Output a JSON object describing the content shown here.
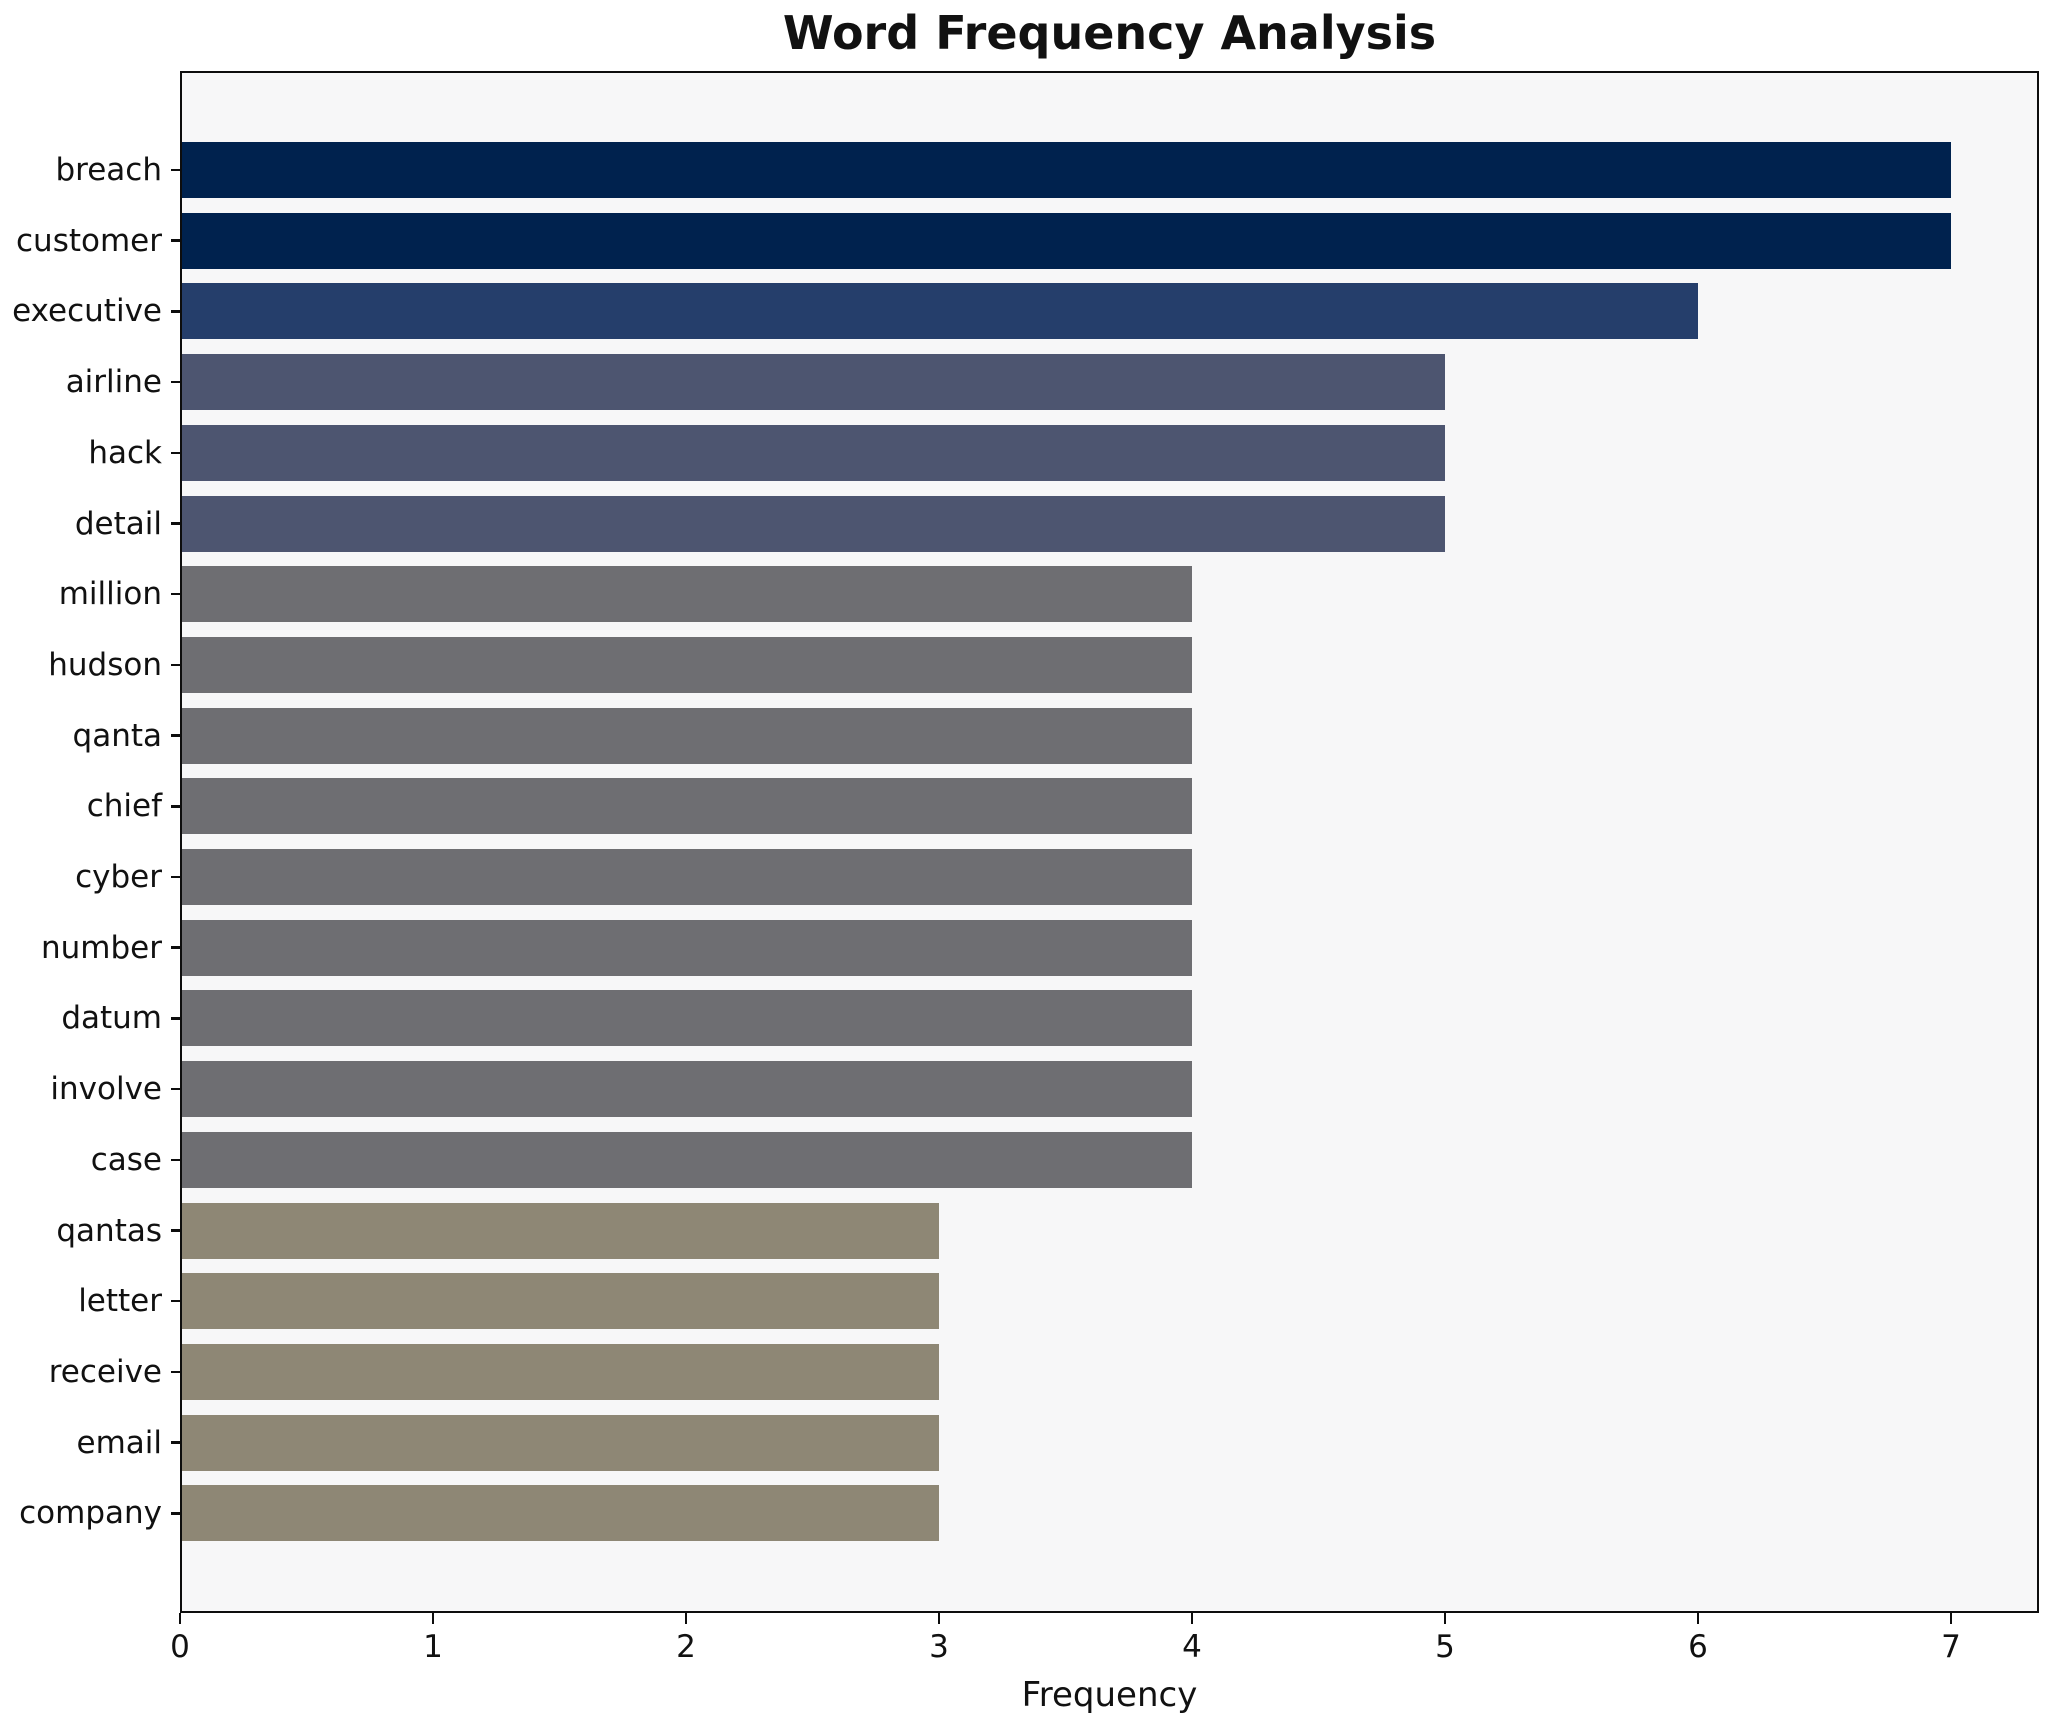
{
  "chart_data": {
    "type": "bar",
    "orientation": "horizontal",
    "title": "Word Frequency Analysis",
    "xlabel": "Frequency",
    "ylabel": "",
    "categories": [
      "breach",
      "customer",
      "executive",
      "airline",
      "hack",
      "detail",
      "million",
      "hudson",
      "qanta",
      "chief",
      "cyber",
      "number",
      "datum",
      "involve",
      "case",
      "qantas",
      "letter",
      "receive",
      "email",
      "company"
    ],
    "values": [
      7,
      7,
      6,
      5,
      5,
      5,
      4,
      4,
      4,
      4,
      4,
      4,
      4,
      4,
      4,
      3,
      3,
      3,
      3,
      3
    ],
    "xticks": [
      "0",
      "1",
      "2",
      "3",
      "4",
      "5",
      "6",
      "7"
    ],
    "xlim": [
      0,
      7.34
    ],
    "grid": false,
    "legend": null,
    "colors_by_value": {
      "7": "#00224e",
      "6": "#253e6b",
      "5": "#4d5570",
      "4": "#6e6e72",
      "3": "#8e8775"
    },
    "plot_background": "#f7f7f8",
    "spine_color": "#0d0d0d"
  }
}
